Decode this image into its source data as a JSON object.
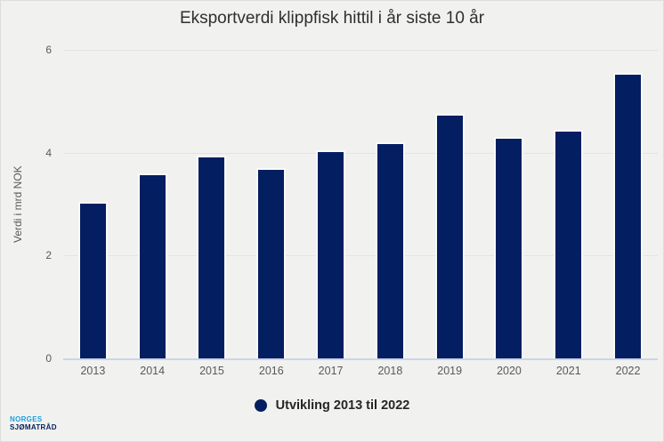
{
  "chart_data": {
    "type": "bar",
    "title": "Eksportverdi klippfisk hittil i år siste 10 år",
    "categories": [
      "2013",
      "2014",
      "2015",
      "2016",
      "2017",
      "2018",
      "2019",
      "2020",
      "2021",
      "2022"
    ],
    "values": [
      3.05,
      3.6,
      3.95,
      3.7,
      4.05,
      4.2,
      4.75,
      4.3,
      4.45,
      5.55
    ],
    "xlabel": "",
    "ylabel": "Verdi i mrd NOK",
    "ylim": [
      0,
      6
    ],
    "yticks": [
      0,
      2,
      4,
      6
    ],
    "grid": true,
    "legend": {
      "label": "Utvikling 2013 til 2022",
      "position": "bottom",
      "marker": "circle"
    }
  },
  "colors": {
    "bar": "#041e62",
    "background": "#f1f2f0",
    "gridline": "#e2e4e1",
    "baseline": "#ccd3e8",
    "axis_text": "#595959",
    "title_text": "#2f2f2f",
    "legend_text": "#262626",
    "logo_blue": "#1a9fe0",
    "logo_navy": "#041e62"
  },
  "logo": {
    "line1": "NORGES",
    "line2": "SJØMATRÅD"
  }
}
